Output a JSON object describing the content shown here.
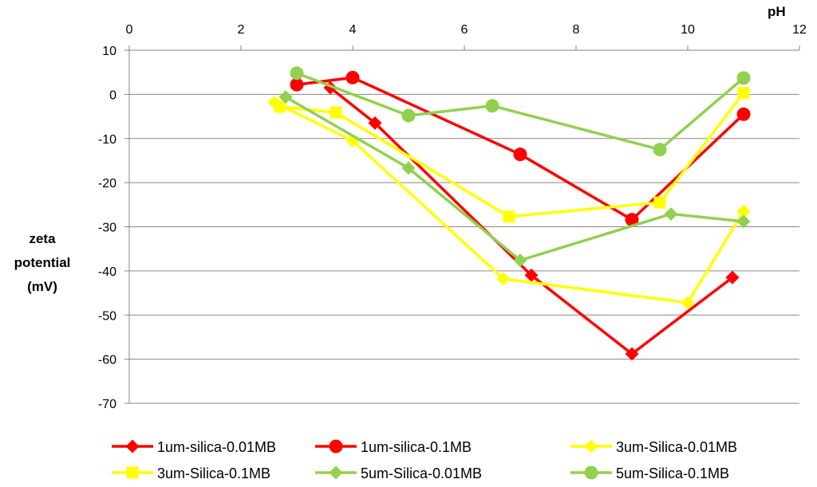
{
  "chart_data": {
    "type": "line",
    "title": "",
    "xlabel": "pH",
    "ylabel": [
      "zeta",
      "potential",
      "(mV)"
    ],
    "xlim": [
      0,
      12
    ],
    "ylim": [
      -70,
      10
    ],
    "x_ticks": [
      0,
      2,
      4,
      6,
      8,
      10,
      12
    ],
    "y_ticks": [
      10,
      0,
      -10,
      -20,
      -30,
      -40,
      -50,
      -60,
      -70
    ],
    "x_axis_position": "top",
    "grid": "horizontal",
    "legend_position": "bottom",
    "series": [
      {
        "name": "1um-silica-0.01MB",
        "color": "#ff0000",
        "marker": "diamond",
        "points": [
          [
            3.6,
            1.5
          ],
          [
            4.4,
            -6.5
          ],
          [
            7.2,
            -41
          ],
          [
            9.0,
            -58.8
          ],
          [
            10.8,
            -41.5
          ]
        ]
      },
      {
        "name": "1um-silica-0.1MB",
        "color": "#ff0000",
        "marker": "circle",
        "points": [
          [
            3.0,
            2.2
          ],
          [
            4.0,
            3.8
          ],
          [
            7.0,
            -13.6
          ],
          [
            9.0,
            -28.4
          ],
          [
            11.0,
            -4.5
          ]
        ]
      },
      {
        "name": "3um-Silica-0.01MB",
        "color": "#ffff00",
        "marker": "diamond",
        "points": [
          [
            2.6,
            -1.8
          ],
          [
            4.0,
            -10.5
          ],
          [
            6.7,
            -41.8
          ],
          [
            10.0,
            -47.2
          ],
          [
            11.0,
            -26.5
          ]
        ]
      },
      {
        "name": "3um-Silica-0.1MB",
        "color": "#ffff00",
        "marker": "square",
        "points": [
          [
            2.7,
            -2.8
          ],
          [
            3.7,
            -4.1
          ],
          [
            6.8,
            -27.7
          ],
          [
            9.5,
            -24.5
          ],
          [
            11.0,
            0.3
          ]
        ]
      },
      {
        "name": "5um-Silica-0.01MB",
        "color": "#92d050",
        "marker": "diamond",
        "points": [
          [
            2.8,
            -0.6
          ],
          [
            5.0,
            -16.7
          ],
          [
            7.0,
            -37.6
          ],
          [
            9.7,
            -27.1
          ],
          [
            11.0,
            -28.8
          ]
        ]
      },
      {
        "name": "5um-Silica-0.1MB",
        "color": "#92d050",
        "marker": "circle",
        "points": [
          [
            3.0,
            4.8
          ],
          [
            5.0,
            -4.8
          ],
          [
            6.5,
            -2.6
          ],
          [
            9.5,
            -12.5
          ],
          [
            11.0,
            3.7
          ]
        ]
      }
    ]
  }
}
